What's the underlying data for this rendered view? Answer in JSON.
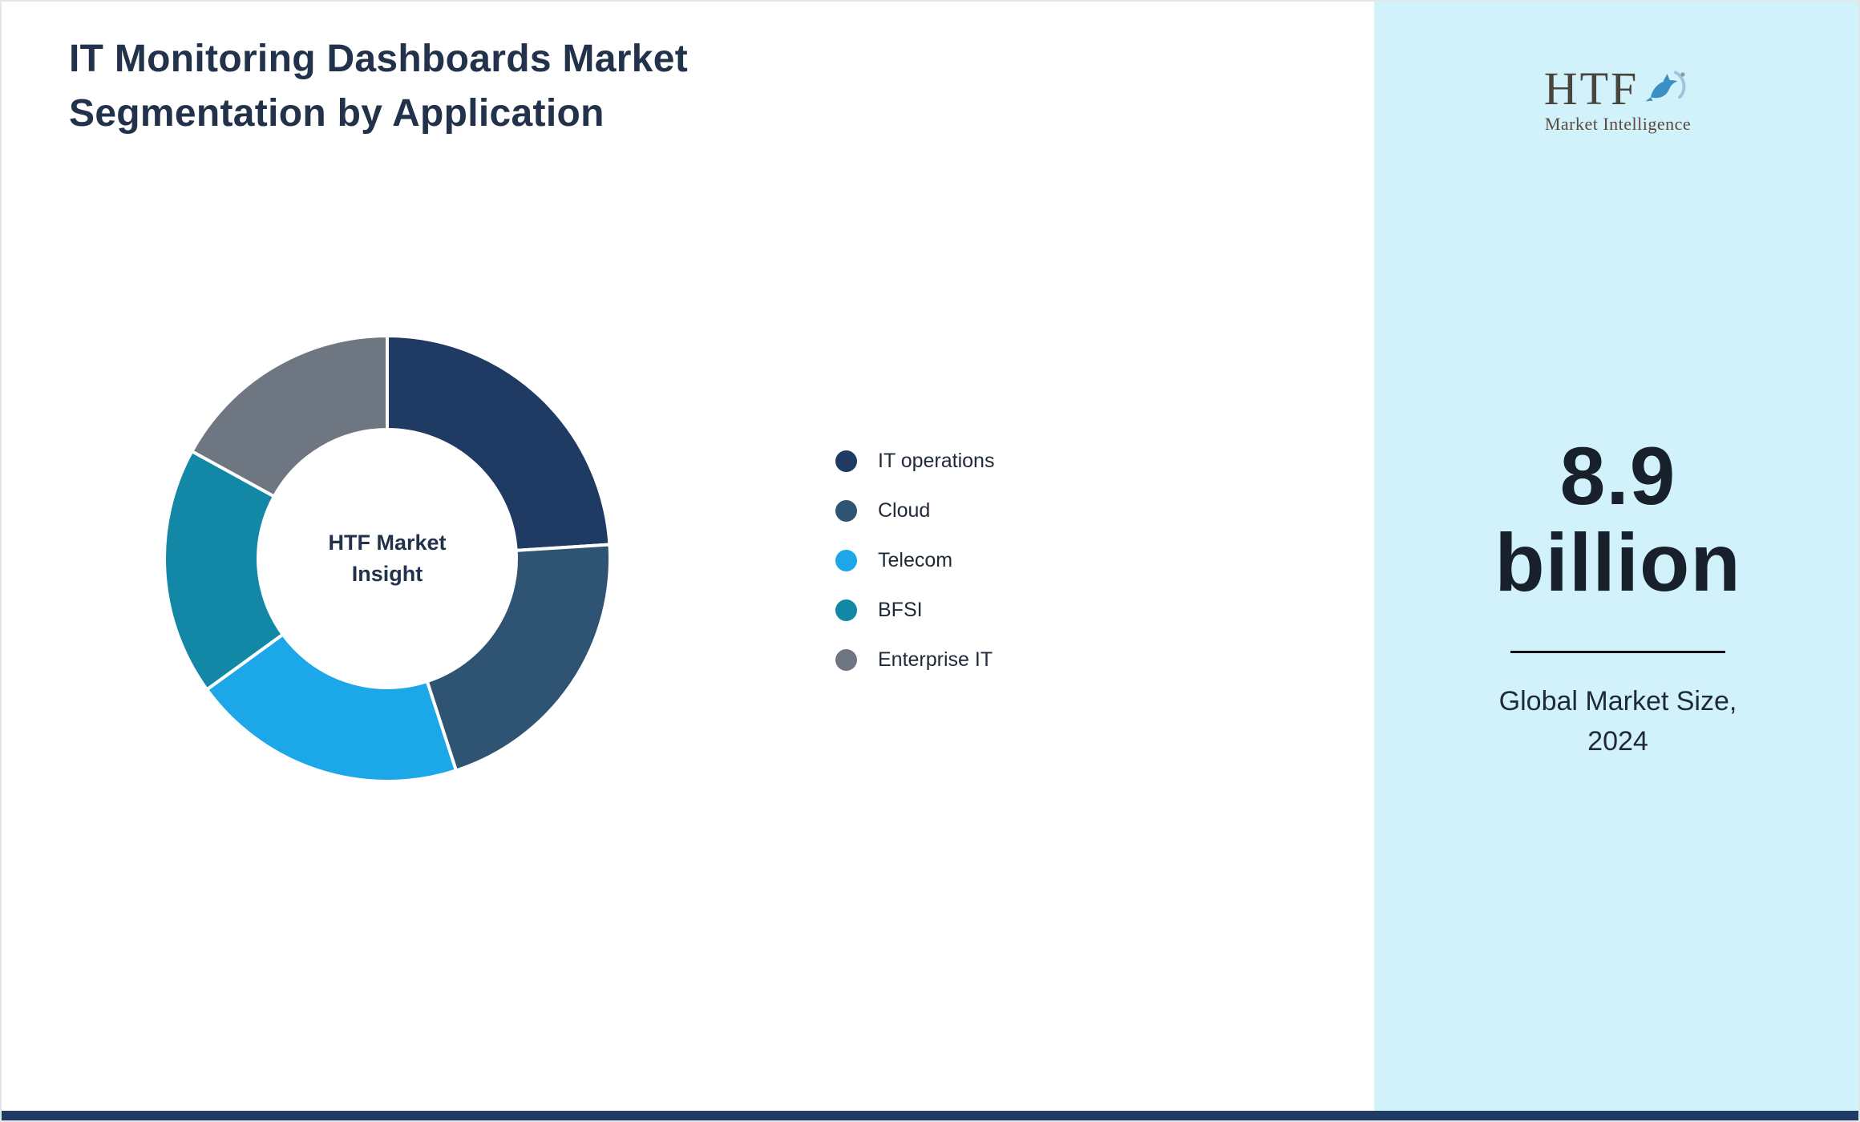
{
  "page": {
    "title": "IT Monitoring Dashboards Market Segmentation by Application"
  },
  "chart_data": {
    "type": "pie",
    "subtype": "donut",
    "title": "IT Monitoring Dashboards Market Segmentation by Application",
    "categories": [
      "IT operations",
      "Cloud",
      "Telecom",
      "BFSI",
      "Enterprise IT"
    ],
    "values": [
      24,
      21,
      20,
      18,
      17
    ],
    "values_note": "percent shares estimated from arc angles; no numeric labels shown in image",
    "colors": [
      "#1f3a63",
      "#2e5373",
      "#1ba7e8",
      "#1388a6",
      "#6d7681"
    ],
    "start_angle": "12 o'clock, clockwise",
    "inner_radius_ratio": 0.58,
    "center_label": "HTF Market Insight",
    "legend_position": "right-center",
    "grid": false
  },
  "donut": {
    "center_label_line1": "HTF Market",
    "center_label_line2": "Insight"
  },
  "sidebar": {
    "background_color": "#d1f2fa",
    "logo_text": "HTF",
    "logo_subtext": "Market Intelligence",
    "stat_line1": "8.9",
    "stat_line2": "billion",
    "caption_line1": "Global Market Size,",
    "caption_line2": "2024"
  },
  "footer": {
    "bar_color": "#1f3a63"
  },
  "icons": {
    "dolphin": "dolphin-splash-icon"
  }
}
